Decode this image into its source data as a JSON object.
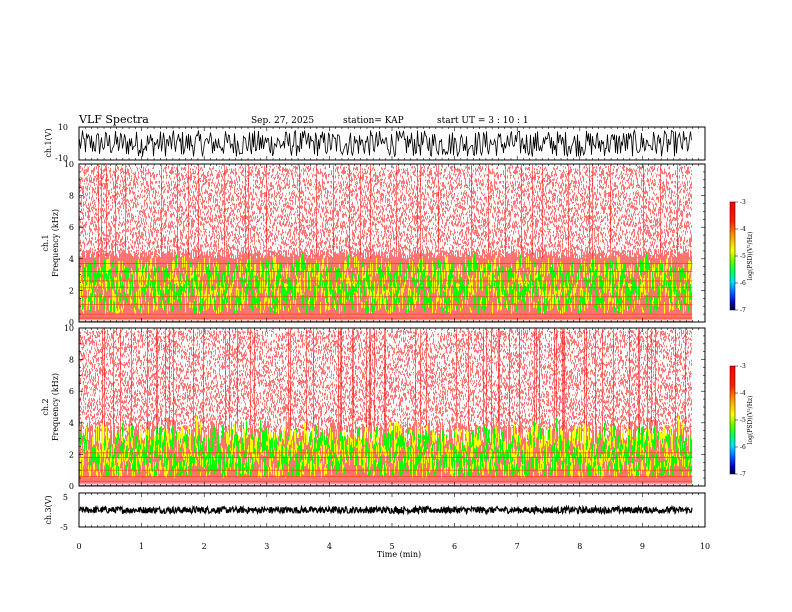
{
  "header": {
    "title": "VLF Spectra",
    "date": "Sep. 27, 2025",
    "station": "station= KAP",
    "start_ut": "start  UT =   3  : 10 : 1"
  },
  "colors": {
    "spectrogram_background": "#ffffff",
    "signal_low": "#ff0000",
    "signal_mid": "#ffff00",
    "signal_high": "#00ff00",
    "colorbar_top": "#ff0000",
    "colorbar_bottom": "#000040",
    "trace": "#000000"
  },
  "chart_data": [
    {
      "type": "line",
      "name": "ch1-waveform",
      "ylabel": "ch.1(V)",
      "ylim": [
        -10,
        10
      ],
      "yticks": [
        "10",
        "-10"
      ],
      "xlim": [
        0,
        10
      ],
      "data_end_min": 9.8,
      "amplitude_range": [
        -8,
        8
      ]
    },
    {
      "type": "heatmap",
      "name": "ch1-spectrogram",
      "ylabel": "ch.1\nFrequency  (kHz)",
      "ylim": [
        0,
        10
      ],
      "yticks": [
        "0",
        "2",
        "4",
        "6",
        "8",
        "10"
      ],
      "xlim": [
        0,
        10
      ],
      "data_end_min": 9.8,
      "colorbar": {
        "label": "log(PSD)(V²/Hz)",
        "range": [
          -7,
          -3
        ],
        "ticks": [
          "-3",
          "-4",
          "-5",
          "-6",
          "-7"
        ]
      }
    },
    {
      "type": "heatmap",
      "name": "ch2-spectrogram",
      "ylabel": "ch.2\nFrequency  (kHz)",
      "ylim": [
        0,
        10
      ],
      "yticks": [
        "0",
        "2",
        "4",
        "6",
        "8",
        "10"
      ],
      "xlim": [
        0,
        10
      ],
      "data_end_min": 9.8,
      "colorbar": {
        "label": "log(PSD)(V²/Hz)",
        "range": [
          -7,
          -3
        ],
        "ticks": [
          "-3",
          "-4",
          "-5",
          "-6",
          "-7"
        ]
      }
    },
    {
      "type": "line",
      "name": "ch3-waveform",
      "ylabel": "ch.3(V)",
      "ylim": [
        -5,
        5
      ],
      "yticks": [
        "5",
        "-5"
      ],
      "xlim": [
        0,
        10
      ],
      "data_end_min": 9.8,
      "amplitude_range": [
        -1,
        1
      ]
    }
  ],
  "xaxis": {
    "label": "Time  (min)",
    "ticks": [
      "0",
      "1",
      "2",
      "3",
      "4",
      "5",
      "6",
      "7",
      "8",
      "9",
      "10"
    ]
  }
}
